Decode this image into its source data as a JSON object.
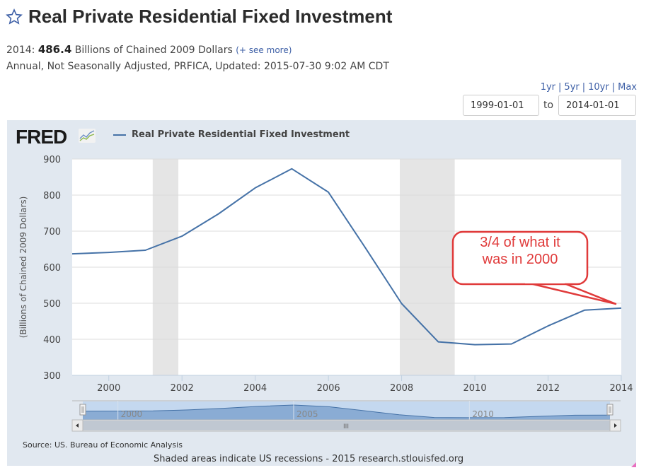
{
  "header": {
    "title": "Real Private Residential Fixed Investment",
    "star_icon": "star-outline-icon",
    "latest_label": "2014:",
    "latest_value": "486.4",
    "units": "Billions of Chained 2009 Dollars",
    "see_more": "(+ see more)",
    "details": "Annual, Not Seasonally Adjusted, PRFICA, Updated: 2015-07-30 9:02 AM CDT"
  },
  "range": {
    "links": [
      "1yr",
      "5yr",
      "10yr",
      "Max"
    ],
    "from": "1999-01-01",
    "to_label": "to",
    "to": "2014-01-01"
  },
  "panel": {
    "logo": "FRED",
    "logo_icon": "fred-graph-icon",
    "source": "Source: US. Bureau of Economic Analysis",
    "notes": "Shaded areas indicate US recessions - 2015 research.stlouisfed.org"
  },
  "colors": {
    "series": "#4572a7",
    "recession": "#e5e5e5",
    "callout": "#e03a3a",
    "panel_bg": "#e1e8f0"
  },
  "annotation": {
    "text_line1": "3/4 of what it",
    "text_line2": "was in 2000",
    "points_to_year": 2014
  },
  "navigator": {
    "tick_labels": [
      "2000",
      "2005",
      "2010"
    ],
    "scrollbar_grip": "III"
  },
  "chart_data": {
    "type": "line",
    "title": "Real Private Residential Fixed Investment",
    "xlabel": "",
    "ylabel": "(Billions of Chained 2009 Dollars)",
    "x": [
      1999,
      2000,
      2001,
      2002,
      2003,
      2004,
      2005,
      2006,
      2007,
      2008,
      2009,
      2010,
      2011,
      2012,
      2013,
      2014
    ],
    "series": [
      {
        "name": "Real Private Residential Fixed Investment",
        "values": [
          637,
          641,
          647,
          686,
          748,
          820,
          873,
          808,
          655,
          499,
          393,
          385,
          387,
          437,
          481,
          486.4
        ]
      }
    ],
    "xlim": [
      1999,
      2014
    ],
    "ylim": [
      300,
      900
    ],
    "x_ticks": [
      "2000",
      "2002",
      "2004",
      "2006",
      "2008",
      "2010",
      "2012",
      "2014"
    ],
    "y_ticks": [
      "300",
      "400",
      "500",
      "600",
      "700",
      "800",
      "900"
    ],
    "recessions": [
      [
        2001.2,
        2001.9
      ],
      [
        2007.95,
        2009.45
      ]
    ],
    "grid": true,
    "legend": "top-left"
  }
}
